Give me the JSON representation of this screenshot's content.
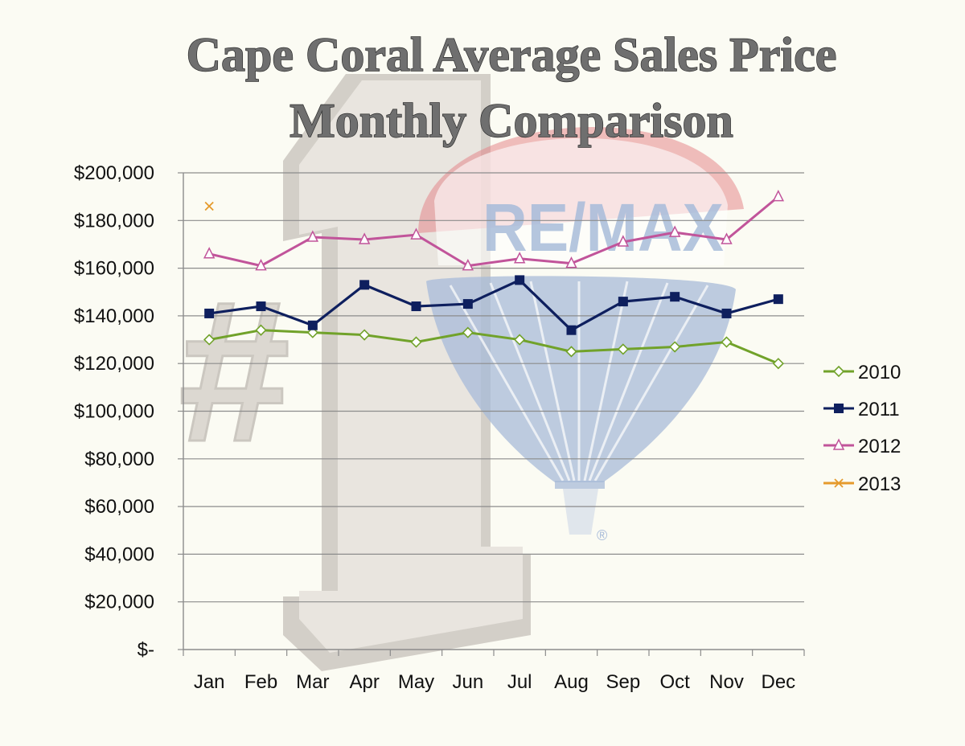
{
  "colors": {
    "background": "#fbfbf3",
    "grid": "#8c8c8c",
    "series": {
      "2010": "#71a22a",
      "2011": "#0e1f5e",
      "2012": "#c1549a",
      "2013": "#e59a2c"
    },
    "watermark_number": "#dcd7d0",
    "watermark_balloon": "#9db3d6",
    "watermark_balloon_top": "#e27a7f"
  },
  "icons": {
    "watermark": "number-one-icon",
    "balloon": "hot-air-balloon-icon",
    "marker_2010": "diamond-marker-icon",
    "marker_2011": "square-marker-icon",
    "marker_2012": "triangle-marker-icon",
    "marker_2013": "x-marker-icon"
  },
  "watermark": {
    "hash": "#",
    "brand": "RE/MAX",
    "registered": "®"
  },
  "chart_data": {
    "type": "line",
    "title": [
      "Cape Coral Average Sales Price",
      "Monthly Comparison"
    ],
    "xlabel": "",
    "ylabel": "",
    "ylim": [
      0,
      200000
    ],
    "ytick_values": [
      0,
      20000,
      40000,
      60000,
      80000,
      100000,
      120000,
      140000,
      160000,
      180000,
      200000
    ],
    "ytick_labels": [
      "$-",
      "$20,000",
      "$40,000",
      "$60,000",
      "$80,000",
      "$100,000",
      "$120,000",
      "$140,000",
      "$160,000",
      "$180,000",
      "$200,000"
    ],
    "grid": true,
    "legend_position": "right",
    "categories": [
      "Jan",
      "Feb",
      "Mar",
      "Apr",
      "May",
      "Jun",
      "Jul",
      "Aug",
      "Sep",
      "Oct",
      "Nov",
      "Dec"
    ],
    "series": [
      {
        "name": "2010",
        "marker": "diamond",
        "values": [
          130000,
          134000,
          133000,
          132000,
          129000,
          133000,
          130000,
          125000,
          126000,
          127000,
          129000,
          120000
        ]
      },
      {
        "name": "2011",
        "marker": "square",
        "values": [
          141000,
          144000,
          136000,
          153000,
          144000,
          145000,
          155000,
          134000,
          146000,
          148000,
          141000,
          147000
        ]
      },
      {
        "name": "2012",
        "marker": "triangle",
        "values": [
          166000,
          161000,
          173000,
          172000,
          174000,
          161000,
          164000,
          162000,
          171000,
          175000,
          172000,
          190000
        ]
      },
      {
        "name": "2013",
        "marker": "x",
        "values": [
          186000,
          null,
          null,
          null,
          null,
          null,
          null,
          null,
          null,
          null,
          null,
          null
        ]
      }
    ]
  }
}
